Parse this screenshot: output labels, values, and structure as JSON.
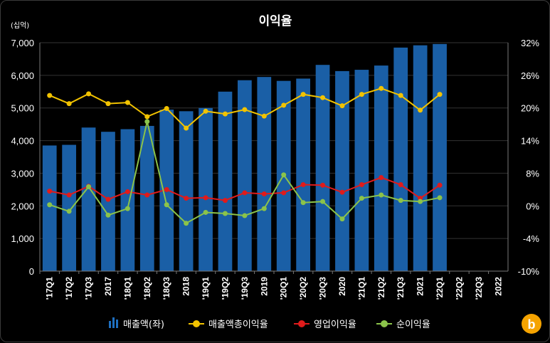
{
  "chart_data": {
    "type": "bar",
    "title": "이익율",
    "y_left_unit": "(십억)",
    "categories": [
      "'17Q1",
      "'17Q2",
      "'17Q3",
      "2017",
      "'18Q1",
      "'18Q2",
      "'18Q3",
      "2018",
      "'19Q1",
      "'19Q2",
      "'19Q3",
      "2019",
      "'20Q1",
      "'20Q2",
      "'20Q3",
      "2020",
      "'21Q1",
      "'21Q2",
      "'21Q3",
      "2021",
      "'22Q1",
      "'22Q2",
      "'22Q3",
      "2022"
    ],
    "bold_categories": [
      "2017",
      "2018",
      "2019",
      "2020",
      "2021",
      "2022"
    ],
    "y_left_ticks": [
      "0",
      "1,000",
      "2,000",
      "3,000",
      "4,000",
      "5,000",
      "6,000",
      "7,000"
    ],
    "y_right_ticks": [
      "-10%",
      "-4%",
      "0%",
      "8%",
      "14%",
      "20%",
      "26%",
      "32%"
    ],
    "ylim_left": [
      0,
      7000
    ],
    "ylim_right": [
      -10,
      32
    ],
    "grid": true,
    "legend_position": "bottom",
    "series": [
      {
        "name": "매출액(좌)",
        "kind": "bar",
        "axis": "left",
        "color": "#1a5fa6",
        "values": [
          3850,
          3870,
          4400,
          4270,
          4350,
          4450,
          4950,
          4900,
          5000,
          5500,
          5850,
          5950,
          5830,
          5900,
          6320,
          6130,
          6170,
          6300,
          6850,
          6920,
          6960,
          null,
          null,
          null
        ]
      },
      {
        "name": "매출액총이익율",
        "kind": "line",
        "axis": "right",
        "color": "#f2c300",
        "values": [
          22.3,
          20.8,
          22.6,
          20.8,
          21.0,
          18.4,
          19.9,
          16.3,
          19.4,
          18.9,
          19.7,
          18.5,
          20.5,
          22.5,
          21.9,
          20.4,
          22.5,
          23.6,
          22.3,
          19.6,
          22.5,
          null,
          null,
          null
        ]
      },
      {
        "name": "영업이익율",
        "kind": "line",
        "axis": "right",
        "color": "#e01b1b",
        "values": [
          4.7,
          4.0,
          5.6,
          3.2,
          4.6,
          4.0,
          5.0,
          3.4,
          3.5,
          3.0,
          4.4,
          4.2,
          4.4,
          5.9,
          5.8,
          4.5,
          5.9,
          7.2,
          5.9,
          3.4,
          5.8,
          null,
          null,
          null
        ]
      },
      {
        "name": "순이익율",
        "kind": "line",
        "axis": "right",
        "color": "#8bc34a",
        "values": [
          2.2,
          1.0,
          5.5,
          0.3,
          1.5,
          17.5,
          2.2,
          -1.2,
          0.8,
          0.6,
          0.2,
          1.5,
          7.7,
          2.6,
          2.8,
          -0.4,
          3.4,
          4.0,
          3.0,
          2.8,
          3.5,
          null,
          null,
          null
        ]
      }
    ]
  },
  "brand": {
    "logo_letter": "b",
    "color": "#f5a300"
  }
}
